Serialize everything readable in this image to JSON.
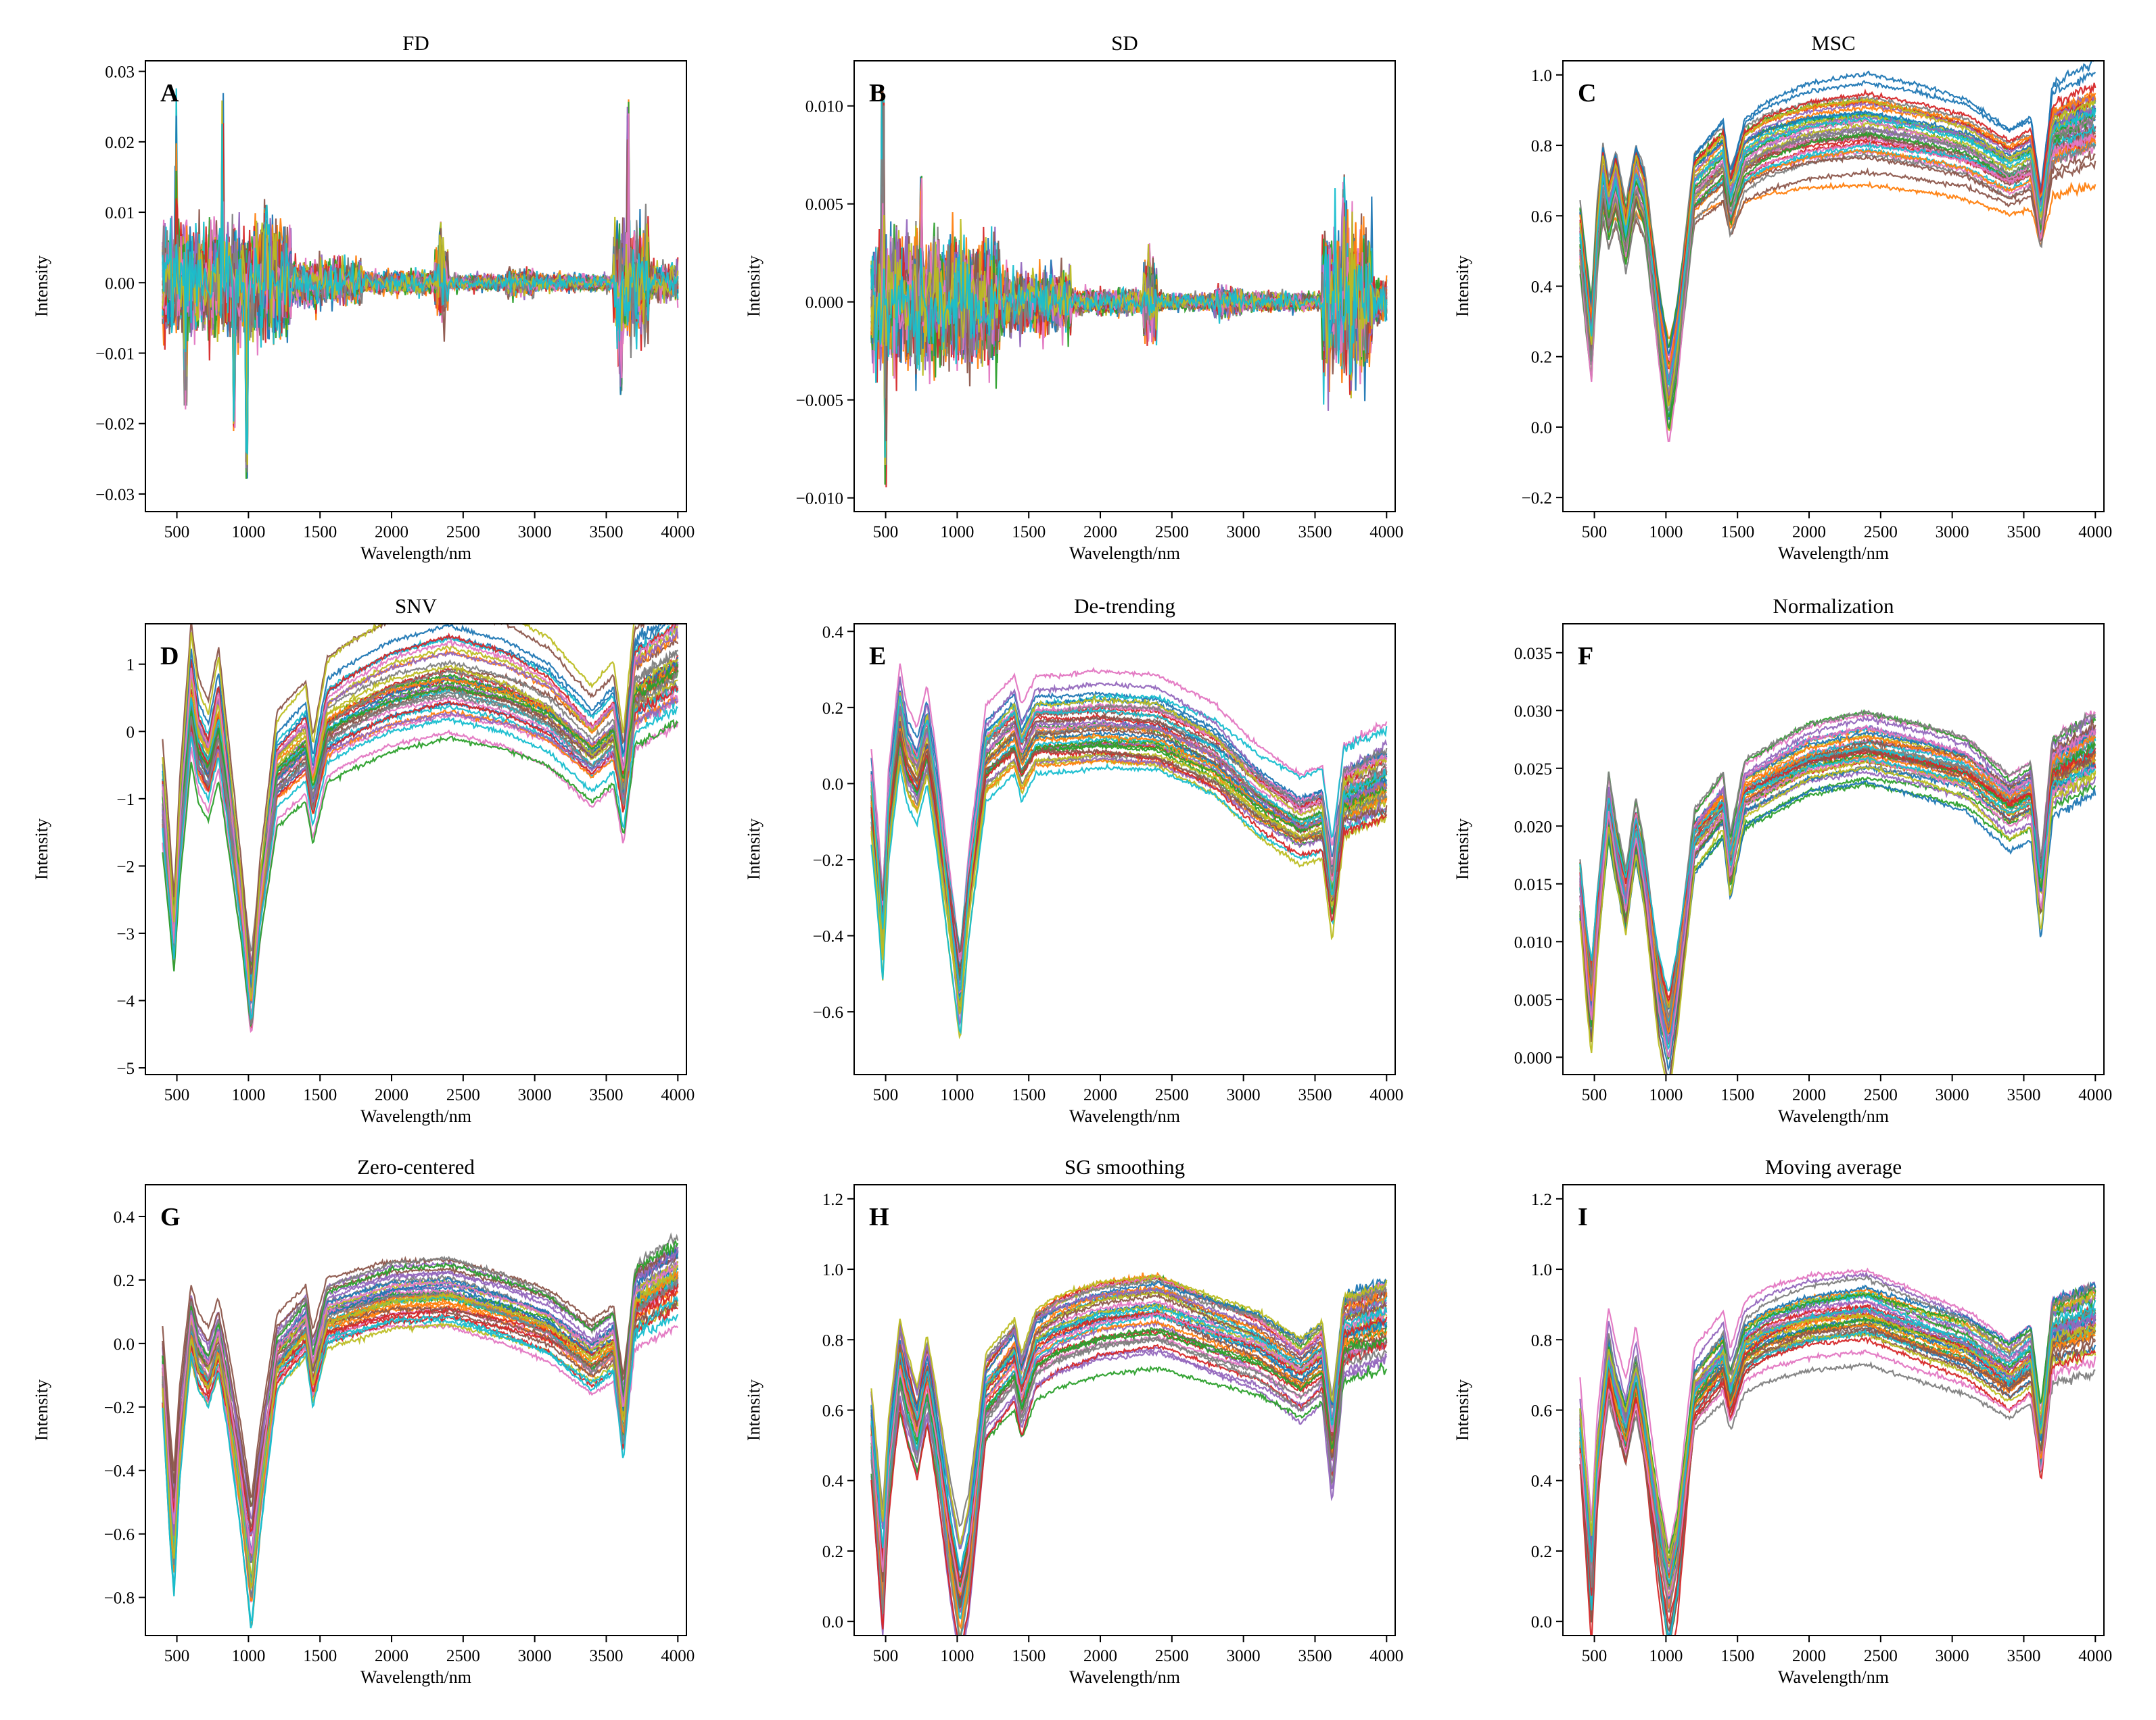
{
  "figure": {
    "palette": [
      "#1f77b4",
      "#ff7f0e",
      "#2ca02c",
      "#d62728",
      "#9467bd",
      "#8c564b",
      "#e377c2",
      "#7f7f7f",
      "#bcbd22",
      "#17becf"
    ],
    "series_count_per_panel": 40
  },
  "chart_data": [
    {
      "type": "line",
      "letter": "A",
      "title": "FD",
      "shape": "fd",
      "xlabel": "Wavelength/nm",
      "ylabel": "Intensity",
      "xlim": [
        280,
        4060
      ],
      "ylim": [
        -0.0325,
        0.0315
      ],
      "xticks": [
        500,
        1000,
        1500,
        2000,
        2500,
        3000,
        3500,
        4000
      ],
      "yticks": [
        -0.03,
        -0.02,
        -0.01,
        0.0,
        0.01,
        0.02,
        0.03
      ],
      "ytick_labels": [
        "−0.03",
        "−0.02",
        "−0.01",
        "0.00",
        "0.01",
        "0.02",
        "0.03"
      ],
      "x_range": [
        400,
        4000
      ],
      "features": [
        [
          490,
          0.028
        ],
        [
          560,
          -0.018
        ],
        [
          820,
          0.027
        ],
        [
          900,
          -0.022
        ],
        [
          985,
          -0.029
        ],
        [
          1120,
          0.012
        ],
        [
          2340,
          0.009
        ],
        [
          3600,
          -0.016
        ],
        [
          3650,
          0.027
        ]
      ]
    },
    {
      "type": "line",
      "letter": "B",
      "title": "SD",
      "shape": "sd",
      "xlabel": "Wavelength/nm",
      "ylabel": "Intensity",
      "xlim": [
        280,
        4060
      ],
      "ylim": [
        -0.0107,
        0.0123
      ],
      "xticks": [
        500,
        1000,
        1500,
        2000,
        2500,
        3000,
        3500,
        4000
      ],
      "yticks": [
        -0.01,
        -0.005,
        0.0,
        0.005,
        0.01
      ],
      "ytick_labels": [
        "−0.010",
        "−0.005",
        "0.000",
        "0.005",
        "0.010"
      ],
      "x_range": [
        400,
        4000
      ],
      "features": [
        [
          480,
          0.011
        ],
        [
          500,
          -0.0095
        ],
        [
          750,
          0.0068
        ],
        [
          2340,
          0.003
        ],
        [
          3700,
          0.0065
        ],
        [
          3750,
          -0.005
        ]
      ]
    },
    {
      "type": "line",
      "letter": "C",
      "title": "MSC",
      "shape": "msc",
      "xlabel": "Wavelength/nm",
      "ylabel": "Intensity",
      "xlim": [
        280,
        4060
      ],
      "ylim": [
        -0.24,
        1.04
      ],
      "xticks": [
        500,
        1000,
        1500,
        2000,
        2500,
        3000,
        3500,
        4000
      ],
      "yticks": [
        -0.2,
        0.0,
        0.2,
        0.4,
        0.6,
        0.8,
        1.0
      ],
      "ytick_labels": [
        "−0.2",
        "0.0",
        "0.2",
        "0.4",
        "0.6",
        "0.8",
        "1.0"
      ],
      "x_range": [
        400,
        4000
      ],
      "anchors": [
        [
          400,
          0.55
        ],
        [
          450,
          0.35
        ],
        [
          480,
          0.25
        ],
        [
          520,
          0.55
        ],
        [
          560,
          0.72
        ],
        [
          600,
          0.62
        ],
        [
          650,
          0.7
        ],
        [
          720,
          0.55
        ],
        [
          790,
          0.72
        ],
        [
          850,
          0.65
        ],
        [
          950,
          0.3
        ],
        [
          1020,
          0.1
        ],
        [
          1080,
          0.25
        ],
        [
          1200,
          0.7
        ],
        [
          1400,
          0.78
        ],
        [
          1450,
          0.65
        ],
        [
          1550,
          0.78
        ],
        [
          1700,
          0.82
        ],
        [
          2000,
          0.86
        ],
        [
          2400,
          0.88
        ],
        [
          2800,
          0.85
        ],
        [
          3100,
          0.82
        ],
        [
          3400,
          0.75
        ],
        [
          3550,
          0.78
        ],
        [
          3620,
          0.6
        ],
        [
          3700,
          0.85
        ],
        [
          4000,
          0.9
        ]
      ]
    },
    {
      "type": "line",
      "letter": "D",
      "title": "SNV",
      "shape": "snv",
      "xlabel": "Wavelength/nm",
      "ylabel": "Intensity",
      "xlim": [
        280,
        4060
      ],
      "ylim": [
        -5.1,
        1.6
      ],
      "xticks": [
        500,
        1000,
        1500,
        2000,
        2500,
        3000,
        3500,
        4000
      ],
      "yticks": [
        -5,
        -4,
        -3,
        -2,
        -1,
        0,
        1
      ],
      "ytick_labels": [
        "−5",
        "−4",
        "−3",
        "−2",
        "−1",
        "0",
        "1"
      ],
      "x_range": [
        400,
        4000
      ],
      "anchors": [
        [
          400,
          -1.0
        ],
        [
          450,
          -2.2
        ],
        [
          480,
          -3.0
        ],
        [
          520,
          -1.5
        ],
        [
          600,
          0.5
        ],
        [
          650,
          -0.2
        ],
        [
          720,
          -0.5
        ],
        [
          790,
          0.2
        ],
        [
          850,
          -0.8
        ],
        [
          950,
          -2.5
        ],
        [
          1020,
          -4.0
        ],
        [
          1080,
          -2.5
        ],
        [
          1200,
          -0.6
        ],
        [
          1400,
          -0.2
        ],
        [
          1450,
          -0.9
        ],
        [
          1550,
          0.1
        ],
        [
          1700,
          0.3
        ],
        [
          2000,
          0.6
        ],
        [
          2400,
          0.8
        ],
        [
          2800,
          0.6
        ],
        [
          3100,
          0.3
        ],
        [
          3400,
          -0.3
        ],
        [
          3550,
          0.0
        ],
        [
          3620,
          -0.9
        ],
        [
          3700,
          0.6
        ],
        [
          4000,
          1.0
        ]
      ]
    },
    {
      "type": "line",
      "letter": "E",
      "title": "De-trending",
      "shape": "detrend",
      "xlabel": "Wavelength/nm",
      "ylabel": "Intensity",
      "xlim": [
        280,
        4060
      ],
      "ylim": [
        -0.765,
        0.42
      ],
      "xticks": [
        500,
        1000,
        1500,
        2000,
        2500,
        3000,
        3500,
        4000
      ],
      "yticks": [
        -0.6,
        -0.4,
        -0.2,
        0.0,
        0.2,
        0.4
      ],
      "ytick_labels": [
        "−0.6",
        "−0.4",
        "−0.2",
        "0.0",
        "0.2",
        "0.4"
      ],
      "x_range": [
        400,
        4000
      ],
      "anchors": [
        [
          400,
          -0.05
        ],
        [
          450,
          -0.25
        ],
        [
          480,
          -0.4
        ],
        [
          520,
          -0.1
        ],
        [
          600,
          0.15
        ],
        [
          650,
          0.05
        ],
        [
          720,
          0.0
        ],
        [
          790,
          0.1
        ],
        [
          850,
          -0.05
        ],
        [
          950,
          -0.35
        ],
        [
          1020,
          -0.55
        ],
        [
          1080,
          -0.3
        ],
        [
          1200,
          0.05
        ],
        [
          1400,
          0.12
        ],
        [
          1450,
          0.05
        ],
        [
          1550,
          0.12
        ],
        [
          1700,
          0.12
        ],
        [
          2000,
          0.13
        ],
        [
          2400,
          0.12
        ],
        [
          2800,
          0.05
        ],
        [
          3100,
          -0.05
        ],
        [
          3400,
          -0.12
        ],
        [
          3550,
          -0.1
        ],
        [
          3620,
          -0.3
        ],
        [
          3700,
          -0.05
        ],
        [
          4000,
          0.0
        ]
      ]
    },
    {
      "type": "line",
      "letter": "F",
      "title": "Normalization",
      "shape": "norm",
      "xlabel": "Wavelength/nm",
      "ylabel": "Intensity",
      "xlim": [
        280,
        4060
      ],
      "ylim": [
        -0.0015,
        0.0375
      ],
      "xticks": [
        500,
        1000,
        1500,
        2000,
        2500,
        3000,
        3500,
        4000
      ],
      "yticks": [
        0.0,
        0.005,
        0.01,
        0.015,
        0.02,
        0.025,
        0.03,
        0.035
      ],
      "ytick_labels": [
        "0.000",
        "0.005",
        "0.010",
        "0.015",
        "0.020",
        "0.025",
        "0.030",
        "0.035"
      ],
      "x_range": [
        400,
        4000
      ],
      "anchors": [
        [
          400,
          0.015
        ],
        [
          450,
          0.008
        ],
        [
          480,
          0.005
        ],
        [
          520,
          0.012
        ],
        [
          600,
          0.022
        ],
        [
          650,
          0.018
        ],
        [
          720,
          0.014
        ],
        [
          790,
          0.02
        ],
        [
          850,
          0.016
        ],
        [
          950,
          0.006
        ],
        [
          1020,
          0.002
        ],
        [
          1080,
          0.007
        ],
        [
          1200,
          0.019
        ],
        [
          1400,
          0.022
        ],
        [
          1450,
          0.017
        ],
        [
          1550,
          0.023
        ],
        [
          1700,
          0.024
        ],
        [
          2000,
          0.026
        ],
        [
          2400,
          0.027
        ],
        [
          2800,
          0.026
        ],
        [
          3100,
          0.025
        ],
        [
          3400,
          0.022
        ],
        [
          3550,
          0.023
        ],
        [
          3620,
          0.015
        ],
        [
          3700,
          0.025
        ],
        [
          4000,
          0.027
        ]
      ]
    },
    {
      "type": "line",
      "letter": "G",
      "title": "Zero-centered",
      "shape": "zero",
      "xlabel": "Wavelength/nm",
      "ylabel": "Intensity",
      "xlim": [
        280,
        4060
      ],
      "ylim": [
        -0.92,
        0.5
      ],
      "xticks": [
        500,
        1000,
        1500,
        2000,
        2500,
        3000,
        3500,
        4000
      ],
      "yticks": [
        -0.8,
        -0.6,
        -0.4,
        -0.2,
        0.0,
        0.2,
        0.4
      ],
      "ytick_labels": [
        "−0.8",
        "−0.6",
        "−0.4",
        "−0.2",
        "0.0",
        "0.2",
        "0.4"
      ],
      "x_range": [
        400,
        4000
      ],
      "anchors": [
        [
          400,
          -0.1
        ],
        [
          450,
          -0.45
        ],
        [
          480,
          -0.6
        ],
        [
          520,
          -0.3
        ],
        [
          600,
          0.05
        ],
        [
          650,
          -0.05
        ],
        [
          720,
          -0.1
        ],
        [
          790,
          0.0
        ],
        [
          850,
          -0.15
        ],
        [
          950,
          -0.45
        ],
        [
          1020,
          -0.7
        ],
        [
          1080,
          -0.45
        ],
        [
          1200,
          -0.05
        ],
        [
          1400,
          0.05
        ],
        [
          1450,
          -0.1
        ],
        [
          1550,
          0.08
        ],
        [
          1700,
          0.1
        ],
        [
          2000,
          0.14
        ],
        [
          2400,
          0.15
        ],
        [
          2800,
          0.1
        ],
        [
          3100,
          0.05
        ],
        [
          3400,
          -0.05
        ],
        [
          3550,
          0.0
        ],
        [
          3620,
          -0.25
        ],
        [
          3700,
          0.12
        ],
        [
          4000,
          0.2
        ]
      ]
    },
    {
      "type": "line",
      "letter": "H",
      "title": "SG smoothing",
      "shape": "sg",
      "xlabel": "Wavelength/nm",
      "ylabel": "Intensity",
      "xlim": [
        280,
        4060
      ],
      "ylim": [
        -0.04,
        1.24
      ],
      "xticks": [
        500,
        1000,
        1500,
        2000,
        2500,
        3000,
        3500,
        4000
      ],
      "yticks": [
        0.0,
        0.2,
        0.4,
        0.6,
        0.8,
        1.0,
        1.2
      ],
      "ytick_labels": [
        "0.0",
        "0.2",
        "0.4",
        "0.6",
        "0.8",
        "1.0",
        "1.2"
      ],
      "x_range": [
        400,
        4000
      ],
      "anchors": [
        [
          400,
          0.55
        ],
        [
          450,
          0.3
        ],
        [
          480,
          0.15
        ],
        [
          520,
          0.45
        ],
        [
          600,
          0.75
        ],
        [
          650,
          0.65
        ],
        [
          720,
          0.55
        ],
        [
          790,
          0.7
        ],
        [
          850,
          0.55
        ],
        [
          950,
          0.25
        ],
        [
          1020,
          0.08
        ],
        [
          1080,
          0.2
        ],
        [
          1200,
          0.65
        ],
        [
          1400,
          0.75
        ],
        [
          1450,
          0.65
        ],
        [
          1550,
          0.78
        ],
        [
          1700,
          0.82
        ],
        [
          2000,
          0.86
        ],
        [
          2400,
          0.88
        ],
        [
          2800,
          0.82
        ],
        [
          3100,
          0.78
        ],
        [
          3400,
          0.7
        ],
        [
          3550,
          0.75
        ],
        [
          3620,
          0.5
        ],
        [
          3700,
          0.82
        ],
        [
          4000,
          0.86
        ]
      ]
    },
    {
      "type": "line",
      "letter": "I",
      "title": "Moving average",
      "shape": "ma",
      "xlabel": "Wavelength/nm",
      "ylabel": "Intensity",
      "xlim": [
        280,
        4060
      ],
      "ylim": [
        -0.04,
        1.24
      ],
      "xticks": [
        500,
        1000,
        1500,
        2000,
        2500,
        3000,
        3500,
        4000
      ],
      "yticks": [
        0.0,
        0.2,
        0.4,
        0.6,
        0.8,
        1.0,
        1.2
      ],
      "ytick_labels": [
        "0.0",
        "0.2",
        "0.4",
        "0.6",
        "0.8",
        "1.0",
        "1.2"
      ],
      "x_range": [
        400,
        4000
      ],
      "anchors": [
        [
          400,
          0.55
        ],
        [
          450,
          0.3
        ],
        [
          480,
          0.15
        ],
        [
          520,
          0.45
        ],
        [
          600,
          0.75
        ],
        [
          650,
          0.65
        ],
        [
          720,
          0.55
        ],
        [
          790,
          0.7
        ],
        [
          850,
          0.55
        ],
        [
          950,
          0.25
        ],
        [
          1020,
          0.08
        ],
        [
          1080,
          0.2
        ],
        [
          1200,
          0.65
        ],
        [
          1400,
          0.75
        ],
        [
          1450,
          0.65
        ],
        [
          1550,
          0.78
        ],
        [
          1700,
          0.82
        ],
        [
          2000,
          0.86
        ],
        [
          2400,
          0.88
        ],
        [
          2800,
          0.82
        ],
        [
          3100,
          0.78
        ],
        [
          3400,
          0.7
        ],
        [
          3550,
          0.75
        ],
        [
          3620,
          0.5
        ],
        [
          3700,
          0.82
        ],
        [
          4000,
          0.86
        ]
      ]
    }
  ]
}
